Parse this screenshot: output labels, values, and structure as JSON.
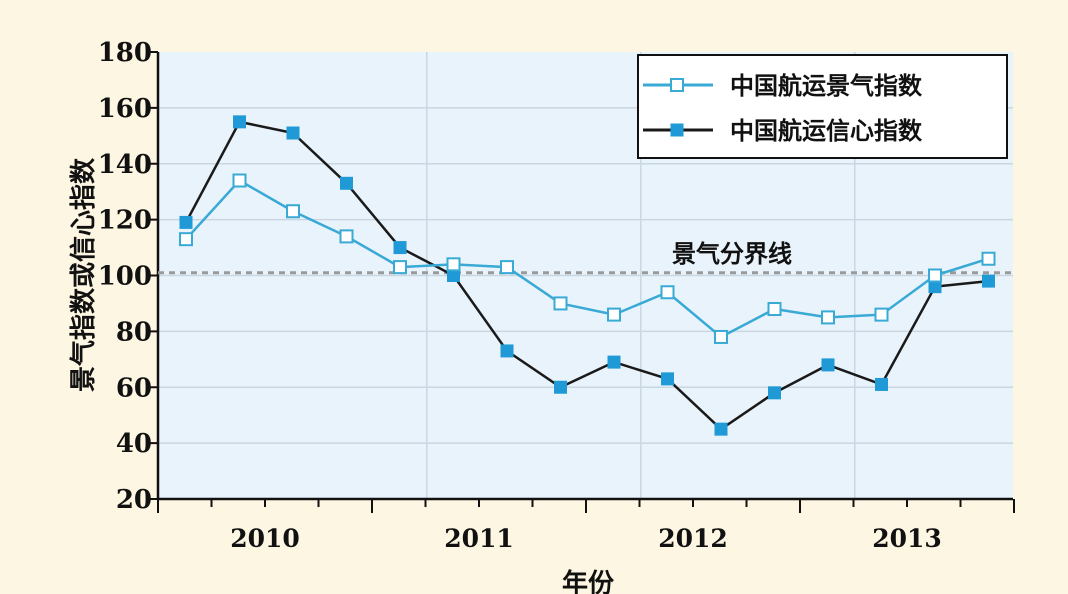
{
  "colors": {
    "page_background": "#fdf6e3",
    "plot_background": "#e9f3fb",
    "gridline": "#c9d7e2",
    "confidence_line": "#1a1a1a",
    "confidence_marker": "#1f9ad6",
    "climate_line": "#39a9d6",
    "climate_marker_fill": "#ffffff",
    "threshold_line": "#9a9a9a"
  },
  "chart_data": {
    "type": "line",
    "title": "",
    "xlabel": "年份",
    "ylabel": "景气指数或信心指数",
    "ylim": [
      20,
      180
    ],
    "yticks": [
      "20",
      "40",
      "60",
      "80",
      "100",
      "120",
      "140",
      "160",
      "180"
    ],
    "year_labels": [
      "2010",
      "2011",
      "2012",
      "2013"
    ],
    "quarters": [
      "2009Q4",
      "2010Q1",
      "2010Q2",
      "2010Q3",
      "2010Q4",
      "2011Q1",
      "2011Q2",
      "2011Q3",
      "2011Q4",
      "2012Q1",
      "2012Q2",
      "2012Q3",
      "2012Q4",
      "2013Q1",
      "2013Q2",
      "2013Q3"
    ],
    "grid": true,
    "legend_position": "top-right",
    "series": [
      {
        "name": "中国航运景气指数",
        "marker": "hollow-square",
        "values": [
          113,
          134,
          123,
          114,
          103,
          104,
          103,
          90,
          86,
          94,
          78,
          88,
          85,
          86,
          100,
          106
        ]
      },
      {
        "name": "中国航运信心指数",
        "marker": "filled-square",
        "values": [
          119,
          155,
          151,
          133,
          110,
          100,
          73,
          60,
          69,
          63,
          45,
          58,
          68,
          61,
          96,
          98
        ]
      }
    ],
    "threshold": {
      "value": 101,
      "label": "景气分界线"
    }
  }
}
